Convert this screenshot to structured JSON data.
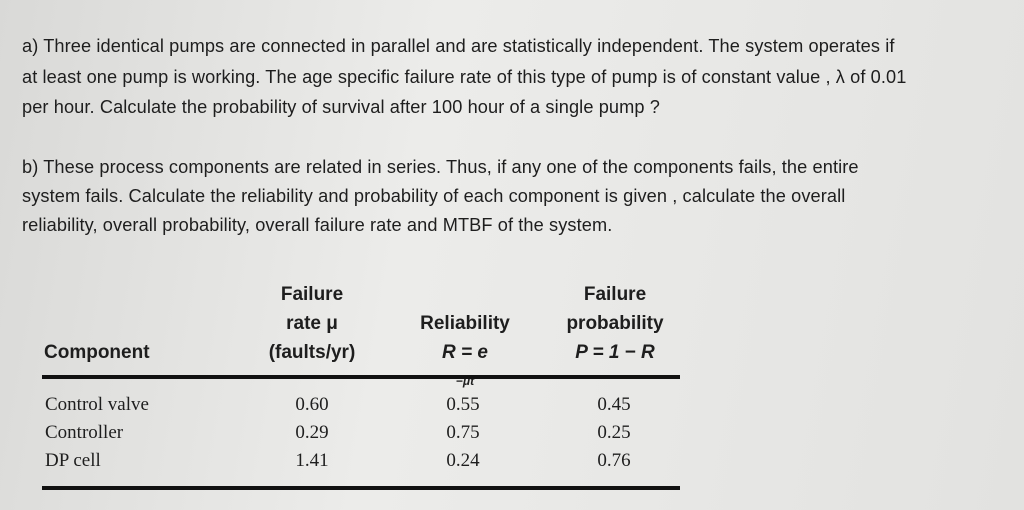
{
  "question_a": {
    "lines": [
      "a) Three identical pumps are connected in parallel and are statistically independent. The system operates if",
      "at least one pump is working. The age specific failure rate of this type of pump is of constant value , λ of 0.01",
      "per hour. Calculate the probability of survival after 100 hour of a single pump ?"
    ]
  },
  "question_b": {
    "lines": [
      "b) These process components are related in series. Thus, if any one of the components fails, the entire",
      "system fails. Calculate the reliability and probability of each component is given , calculate the overall",
      "reliability, overall probability, overall failure rate and MTBF of the system."
    ]
  },
  "table": {
    "headers": [
      [
        "Component"
      ],
      [
        "Failure",
        "rate μ",
        "(faults/yr)"
      ],
      [
        "Reliability",
        "R = e",
        "−μt"
      ],
      [
        "Failure",
        "probability",
        "P = 1 − R"
      ]
    ],
    "rows": [
      [
        "Control valve",
        "0.60",
        "0.55",
        "0.45"
      ],
      [
        "Controller",
        "0.29",
        "0.75",
        "0.25"
      ],
      [
        "DP cell",
        "1.41",
        "0.24",
        "0.76"
      ]
    ]
  }
}
